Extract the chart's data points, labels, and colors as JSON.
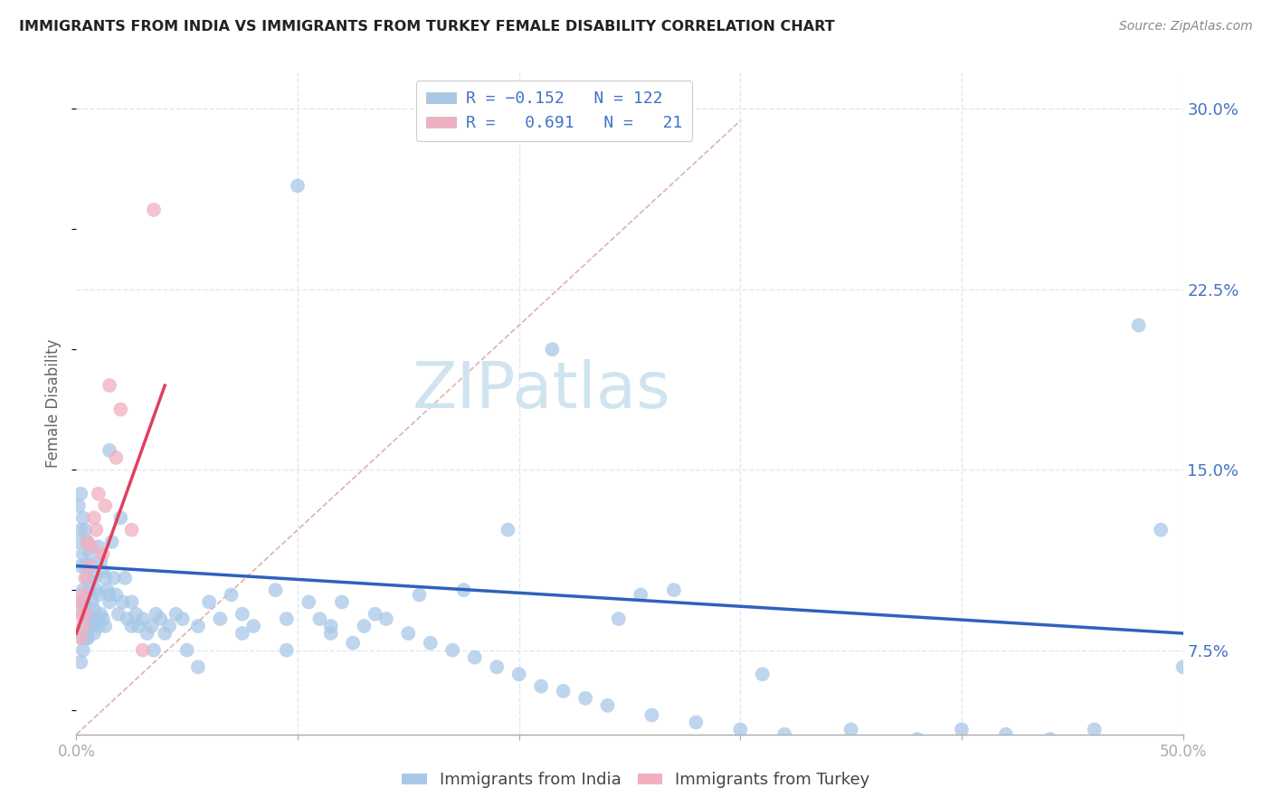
{
  "title": "IMMIGRANTS FROM INDIA VS IMMIGRANTS FROM TURKEY FEMALE DISABILITY CORRELATION CHART",
  "source": "Source: ZipAtlas.com",
  "ylabel": "Female Disability",
  "xlim": [
    0.0,
    0.5
  ],
  "ylim": [
    0.04,
    0.315
  ],
  "india_R": -0.152,
  "india_N": 122,
  "turkey_R": 0.691,
  "turkey_N": 21,
  "india_color": "#a8c8e8",
  "turkey_color": "#f0b0c0",
  "india_line_color": "#3060c0",
  "turkey_line_color": "#e04060",
  "ref_line_color": "#e0b0b8",
  "background_color": "#ffffff",
  "grid_color": "#dde8f0",
  "watermark_text": "ZIPatlas",
  "watermark_color": "#d0e4f0",
  "india_scatter_x": [
    0.001,
    0.001,
    0.002,
    0.002,
    0.002,
    0.002,
    0.003,
    0.003,
    0.003,
    0.003,
    0.003,
    0.004,
    0.004,
    0.004,
    0.004,
    0.005,
    0.005,
    0.005,
    0.005,
    0.006,
    0.006,
    0.006,
    0.007,
    0.007,
    0.007,
    0.008,
    0.008,
    0.008,
    0.009,
    0.009,
    0.01,
    0.01,
    0.01,
    0.011,
    0.011,
    0.012,
    0.012,
    0.013,
    0.013,
    0.014,
    0.015,
    0.015,
    0.016,
    0.017,
    0.018,
    0.019,
    0.02,
    0.021,
    0.022,
    0.023,
    0.025,
    0.027,
    0.028,
    0.03,
    0.032,
    0.034,
    0.036,
    0.038,
    0.04,
    0.042,
    0.045,
    0.048,
    0.05,
    0.055,
    0.06,
    0.065,
    0.07,
    0.075,
    0.08,
    0.09,
    0.095,
    0.1,
    0.105,
    0.11,
    0.115,
    0.12,
    0.125,
    0.13,
    0.14,
    0.15,
    0.16,
    0.17,
    0.18,
    0.19,
    0.2,
    0.21,
    0.22,
    0.23,
    0.24,
    0.26,
    0.28,
    0.3,
    0.32,
    0.35,
    0.38,
    0.4,
    0.42,
    0.44,
    0.46,
    0.48,
    0.49,
    0.5,
    0.31,
    0.27,
    0.255,
    0.245,
    0.215,
    0.195,
    0.175,
    0.155,
    0.135,
    0.115,
    0.095,
    0.075,
    0.055,
    0.035,
    0.025,
    0.015,
    0.01,
    0.005,
    0.003,
    0.002
  ],
  "india_scatter_y": [
    0.135,
    0.12,
    0.14,
    0.125,
    0.11,
    0.095,
    0.13,
    0.115,
    0.1,
    0.09,
    0.08,
    0.125,
    0.11,
    0.095,
    0.085,
    0.12,
    0.105,
    0.09,
    0.08,
    0.115,
    0.1,
    0.088,
    0.11,
    0.095,
    0.085,
    0.105,
    0.092,
    0.082,
    0.1,
    0.088,
    0.118,
    0.098,
    0.085,
    0.112,
    0.09,
    0.108,
    0.088,
    0.105,
    0.085,
    0.1,
    0.158,
    0.095,
    0.12,
    0.105,
    0.098,
    0.09,
    0.13,
    0.095,
    0.105,
    0.088,
    0.095,
    0.09,
    0.085,
    0.088,
    0.082,
    0.085,
    0.09,
    0.088,
    0.082,
    0.085,
    0.09,
    0.088,
    0.075,
    0.085,
    0.095,
    0.088,
    0.098,
    0.09,
    0.085,
    0.1,
    0.088,
    0.268,
    0.095,
    0.088,
    0.082,
    0.095,
    0.078,
    0.085,
    0.088,
    0.082,
    0.078,
    0.075,
    0.072,
    0.068,
    0.065,
    0.06,
    0.058,
    0.055,
    0.052,
    0.048,
    0.045,
    0.042,
    0.04,
    0.042,
    0.038,
    0.042,
    0.04,
    0.038,
    0.042,
    0.21,
    0.125,
    0.068,
    0.065,
    0.1,
    0.098,
    0.088,
    0.2,
    0.125,
    0.1,
    0.098,
    0.09,
    0.085,
    0.075,
    0.082,
    0.068,
    0.075,
    0.085,
    0.098,
    0.088,
    0.08,
    0.075,
    0.07
  ],
  "turkey_scatter_x": [
    0.001,
    0.002,
    0.002,
    0.003,
    0.003,
    0.004,
    0.004,
    0.005,
    0.006,
    0.007,
    0.008,
    0.009,
    0.01,
    0.012,
    0.013,
    0.015,
    0.018,
    0.02,
    0.025,
    0.03,
    0.035
  ],
  "turkey_scatter_y": [
    0.09,
    0.095,
    0.08,
    0.098,
    0.085,
    0.105,
    0.09,
    0.12,
    0.11,
    0.118,
    0.13,
    0.125,
    0.14,
    0.115,
    0.135,
    0.185,
    0.155,
    0.175,
    0.125,
    0.075,
    0.258
  ],
  "india_line_x0": 0.0,
  "india_line_x1": 0.5,
  "india_line_y0": 0.11,
  "india_line_y1": 0.082,
  "turkey_line_x0": 0.0,
  "turkey_line_x1": 0.04,
  "turkey_line_y0": 0.082,
  "turkey_line_y1": 0.185,
  "ref_line_x0": 0.0,
  "ref_line_x1": 0.3,
  "ref_line_y0": 0.04,
  "ref_line_y1": 0.295
}
